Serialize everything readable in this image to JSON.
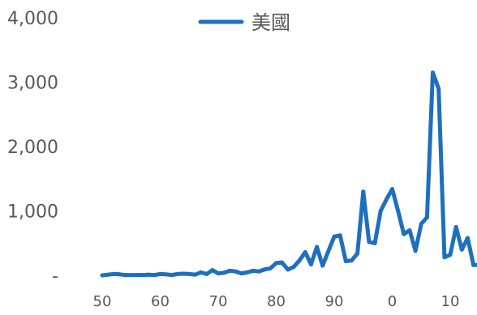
{
  "chart_data": {
    "type": "line",
    "title": "",
    "xlabel": "",
    "ylabel": "",
    "legend_position": "top",
    "grid": false,
    "ylim": [
      0,
      4000
    ],
    "y_ticks": [
      {
        "value": 0,
        "label": "-"
      },
      {
        "value": 1000,
        "label": "1,000"
      },
      {
        "value": 2000,
        "label": "2,000"
      },
      {
        "value": 3000,
        "label": "3,000"
      },
      {
        "value": 4000,
        "label": "4,000"
      }
    ],
    "x_ticks": [
      {
        "x": 1950,
        "label": "50"
      },
      {
        "x": 1960,
        "label": "60"
      },
      {
        "x": 1970,
        "label": "70"
      },
      {
        "x": 1980,
        "label": "80"
      },
      {
        "x": 1990,
        "label": "90"
      },
      {
        "x": 2000,
        "label": "0"
      },
      {
        "x": 2010,
        "label": "10"
      }
    ],
    "series": [
      {
        "name": "美國",
        "color": "#1F6FBF",
        "x": [
          1950,
          1951,
          1952,
          1953,
          1954,
          1955,
          1956,
          1957,
          1958,
          1959,
          1960,
          1961,
          1962,
          1963,
          1964,
          1965,
          1966,
          1967,
          1968,
          1969,
          1970,
          1971,
          1972,
          1973,
          1974,
          1975,
          1976,
          1977,
          1978,
          1979,
          1980,
          1981,
          1982,
          1983,
          1984,
          1985,
          1986,
          1987,
          1988,
          1989,
          1990,
          1991,
          1992,
          1993,
          1994,
          1995,
          1996,
          1997,
          1998,
          1999,
          2000,
          2001,
          2002,
          2003,
          2004,
          2005,
          2006,
          2007,
          2008,
          2009,
          2010,
          2011,
          2012,
          2013,
          2014,
          2015
        ],
        "values": [
          0,
          10,
          20,
          15,
          5,
          5,
          5,
          5,
          10,
          5,
          20,
          15,
          5,
          20,
          25,
          20,
          10,
          45,
          20,
          80,
          30,
          40,
          70,
          60,
          30,
          45,
          70,
          60,
          90,
          110,
          190,
          200,
          90,
          130,
          230,
          360,
          170,
          440,
          150,
          380,
          600,
          620,
          220,
          230,
          340,
          1300,
          520,
          500,
          1000,
          1180,
          1340,
          1000,
          640,
          700,
          380,
          800,
          900,
          3150,
          2900,
          280,
          320,
          750,
          400,
          580,
          160,
          160
        ]
      }
    ]
  }
}
